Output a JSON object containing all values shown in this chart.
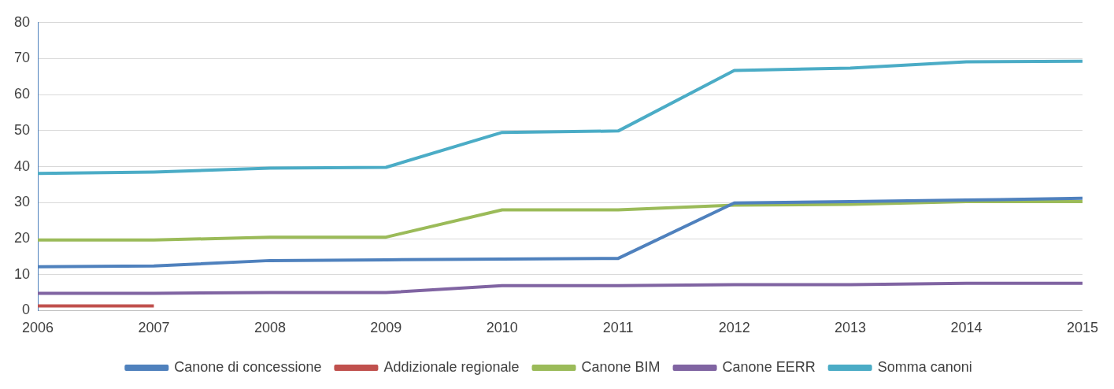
{
  "chart_data": {
    "type": "line",
    "categories": [
      "2006",
      "2007",
      "2008",
      "2009",
      "2010",
      "2011",
      "2012",
      "2013",
      "2014",
      "2015"
    ],
    "series": [
      {
        "name": "Canone di concessione",
        "color": "#4f81bd",
        "values": [
          12.2,
          12.4,
          13.9,
          14.1,
          14.3,
          14.5,
          29.9,
          30.3,
          30.7,
          31.2
        ]
      },
      {
        "name": "Addizionale regionale",
        "color": "#c0504d",
        "values": [
          1.3,
          1.3,
          null,
          null,
          null,
          null,
          null,
          null,
          null,
          null
        ]
      },
      {
        "name": "Canone BIM",
        "color": "#9bbb59",
        "values": [
          19.6,
          19.6,
          20.4,
          20.4,
          28.0,
          28.0,
          29.3,
          29.5,
          30.3,
          30.3
        ]
      },
      {
        "name": "Canone EERR",
        "color": "#8064a2",
        "values": [
          4.8,
          4.8,
          5.0,
          5.0,
          6.9,
          6.9,
          7.2,
          7.2,
          7.6,
          7.6
        ]
      },
      {
        "name": "Somma canoni",
        "color": "#4bacc6",
        "values": [
          38.1,
          38.5,
          39.6,
          39.8,
          49.5,
          49.9,
          66.7,
          67.4,
          69.1,
          69.3
        ]
      }
    ],
    "ylim": [
      0,
      80
    ],
    "yticks": [
      0,
      10,
      20,
      30,
      40,
      50,
      60,
      70,
      80
    ],
    "grid": "y",
    "legend": "bottom",
    "marker": "none",
    "line_style": "solid"
  }
}
